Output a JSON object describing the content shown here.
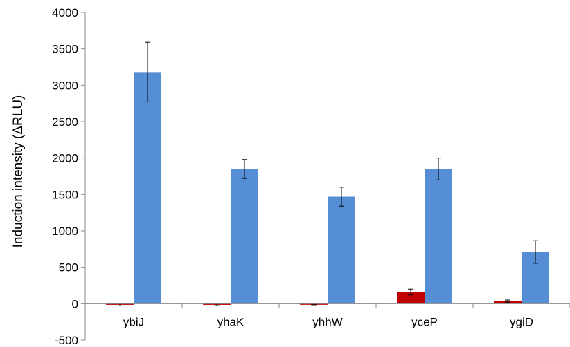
{
  "chart_data": {
    "type": "bar",
    "title": "",
    "xlabel": "",
    "ylabel": "Induction intensity (ΔRLU)",
    "categories": [
      "ybiJ",
      "yhaK",
      "yhhW",
      "yceP",
      "ygiD"
    ],
    "ylim": [
      -500,
      4000
    ],
    "yticks": [
      -500,
      0,
      500,
      1000,
      1500,
      2000,
      2500,
      3000,
      3500,
      4000
    ],
    "grid": false,
    "legend": "none",
    "series": [
      {
        "values": [
          -15,
          -15,
          -5,
          160,
          35
        ],
        "errors": [
          15,
          12,
          10,
          40,
          15
        ],
        "color": "#c00000"
      },
      {
        "values": [
          3180,
          1850,
          1470,
          1850,
          710
        ],
        "errors": [
          410,
          130,
          130,
          150,
          155
        ],
        "color": "#558ed5"
      }
    ]
  }
}
